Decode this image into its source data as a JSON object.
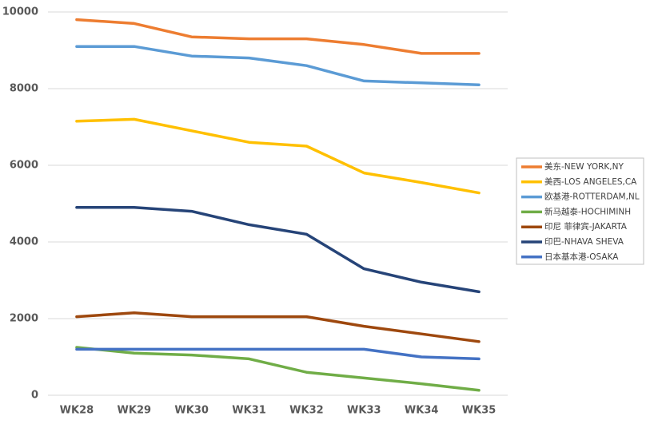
{
  "chart_data": {
    "type": "line",
    "categories": [
      "WK28",
      "WK29",
      "WK30",
      "WK31",
      "WK32",
      "WK33",
      "WK34",
      "WK35"
    ],
    "series": [
      {
        "name": "美东-NEW YORK,NY",
        "color": "#ED7D31",
        "values": [
          9800,
          9700,
          9350,
          9300,
          9300,
          9150,
          8920,
          8920
        ]
      },
      {
        "name": "美西-LOS ANGELES,CA",
        "color": "#FFC000",
        "values": [
          7150,
          7200,
          6900,
          6600,
          6500,
          5800,
          5550,
          5280
        ]
      },
      {
        "name": "欧基港-ROTTERDAM,NL",
        "color": "#5B9BD5",
        "values": [
          9100,
          9100,
          8850,
          8800,
          8600,
          8200,
          8150,
          8100
        ]
      },
      {
        "name": "新马越泰-HOCHIMINH",
        "color": "#70AD47",
        "values": [
          1250,
          1100,
          1050,
          950,
          600,
          450,
          300,
          130
        ]
      },
      {
        "name": "印尼 菲律宾-JAKARTA",
        "color": "#9E480E",
        "values": [
          2050,
          2150,
          2050,
          2050,
          2050,
          1800,
          1600,
          1400
        ]
      },
      {
        "name": "印巴-NHAVA SHEVA",
        "color": "#264478",
        "values": [
          4900,
          4900,
          4800,
          4450,
          4200,
          3300,
          2950,
          2700
        ]
      },
      {
        "name": "日本基本港-OSAKA",
        "color": "#4472C4",
        "values": [
          1200,
          1200,
          1200,
          1200,
          1200,
          1200,
          1000,
          950
        ]
      }
    ],
    "ylim": [
      0,
      10000
    ],
    "yticks": [
      0,
      2000,
      4000,
      6000,
      8000,
      10000
    ],
    "grid": true,
    "legend": "right"
  }
}
